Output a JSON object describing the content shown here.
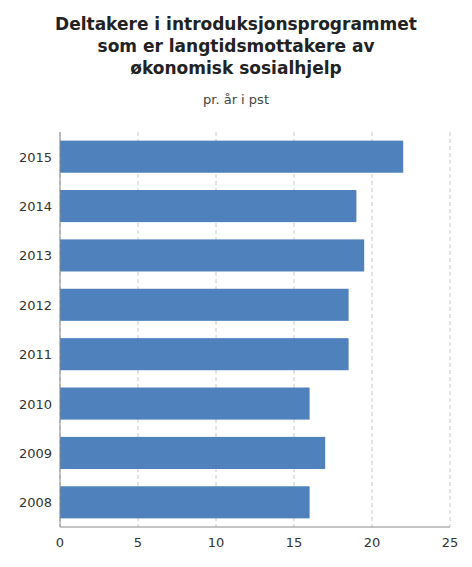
{
  "chart_data": {
    "type": "bar",
    "orientation": "horizontal",
    "title": "Deltakere i introduksjonsprogrammet\nsom er langtidsmottakere av\nøkonomisk sosialhjelp",
    "subtitle": "pr. år i pst",
    "categories": [
      "2015",
      "2014",
      "2013",
      "2012",
      "2011",
      "2010",
      "2009",
      "2008"
    ],
    "values": [
      22,
      19,
      19.5,
      18.5,
      18.5,
      16,
      17,
      16
    ],
    "color": "#4f81bd",
    "xlim": [
      0,
      25
    ],
    "xticks": [
      0,
      5,
      10,
      15,
      20,
      25
    ],
    "grid": true
  }
}
